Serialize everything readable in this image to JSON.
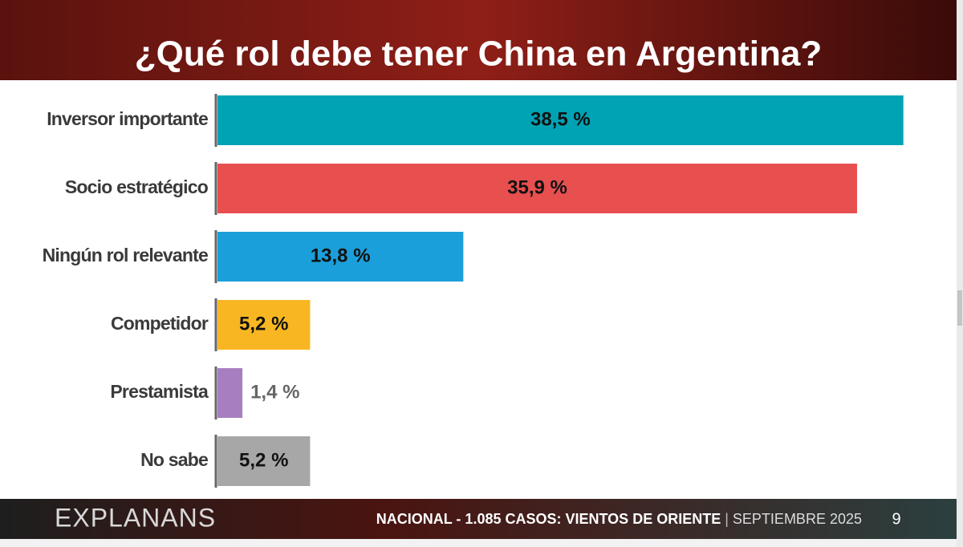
{
  "chart_data": {
    "type": "bar",
    "orientation": "horizontal",
    "title": "¿Qué rol debe tener China en Argentina?",
    "categories": [
      "Inversor importante",
      "Socio estratégico",
      "Ningún rol relevante",
      "Competidor",
      "Prestamista",
      "No sabe"
    ],
    "values": [
      38.5,
      35.9,
      13.8,
      5.2,
      1.4,
      5.2
    ],
    "value_labels": [
      "38,5 %",
      "35,9 %",
      "13,8 %",
      "5,2 %",
      "1,4 %",
      "5,2 %"
    ],
    "colors": [
      "#00a3b4",
      "#e84f4f",
      "#1b9fda",
      "#f8b722",
      "#a77fc0",
      "#a7a7a7"
    ]
  },
  "footer": {
    "brand": "EXPLANANS",
    "scope": "NACIONAL - 1.085 CASOS:",
    "study": "VIENTOS DE ORIENTE",
    "separator": "|",
    "date": "SEPTIEMBRE 2025",
    "page": "9"
  }
}
